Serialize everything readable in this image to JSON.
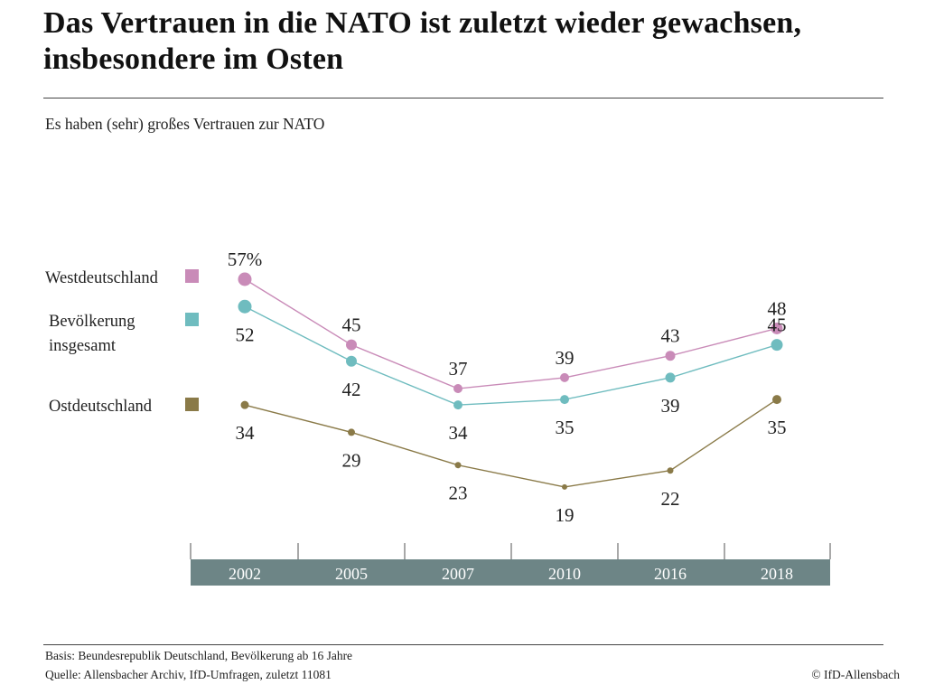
{
  "header": {
    "title": "Das Vertrauen in die NATO ist zuletzt wieder gewachsen, insbesondere im Osten",
    "subtitle": "Es haben (sehr) großes Vertrauen zur NATO"
  },
  "footer": {
    "basis": "Basis: Beundesrepublik Deutschland, Bevölkerung ab 16 Jahre",
    "source": "Quelle: Allensbacher Archiv, IfD-Umfragen, zuletzt 11081",
    "copyright": "© IfD-Allensbach"
  },
  "colors": {
    "west": "#c98bb8",
    "total": "#6fbcbf",
    "east": "#8a7a48",
    "axis_band": "#6d8586",
    "axis_text": "#ffffff"
  },
  "chart_data": {
    "type": "line",
    "title": "Das Vertrauen in die NATO ist zuletzt wieder gewachsen, insbesondere im Osten",
    "subtitle": "Es haben (sehr) großes Vertrauen zur NATO",
    "x": [
      "2002",
      "2005",
      "2007",
      "2010",
      "2016",
      "2018"
    ],
    "ylim": [
      15,
      60
    ],
    "grid": false,
    "legend": "left",
    "series": [
      {
        "key": "west",
        "name": "Westdeutschland",
        "values": [
          57,
          45,
          37,
          39,
          43,
          48
        ],
        "labels": [
          "57%",
          "45",
          "37",
          "39",
          "43",
          "48"
        ],
        "label_pos": [
          "above",
          "above",
          "above",
          "above",
          "above",
          "above"
        ]
      },
      {
        "key": "total",
        "name": "Bevölkerung insgesamt",
        "name_lines": [
          "Bevölkerung",
          "insgesamt"
        ],
        "values": [
          52,
          42,
          34,
          35,
          39,
          45
        ],
        "labels": [
          "52",
          "42",
          "34",
          "35",
          "39",
          "45"
        ],
        "label_pos": [
          "below",
          "below",
          "below",
          "below",
          "below",
          "above"
        ]
      },
      {
        "key": "east",
        "name": "Ostdeutschland",
        "values": [
          34,
          29,
          23,
          19,
          22,
          35
        ],
        "labels": [
          "34",
          "29",
          "23",
          "19",
          "22",
          "35"
        ],
        "label_pos": [
          "below",
          "below",
          "below",
          "below",
          "below",
          "below"
        ]
      }
    ]
  }
}
